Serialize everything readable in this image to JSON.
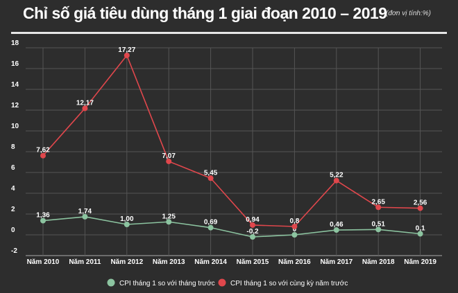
{
  "title": "Chỉ số giá tiêu dùng tháng 1  giai đoạn 2010 – 2019",
  "unit_note": "(đơn vị tính:%)",
  "chart_data": {
    "type": "line",
    "title": "Chỉ số giá tiêu dùng tháng 1  giai đoạn 2010 – 2019",
    "categories": [
      "Năm 2010",
      "Năm 2011",
      "Năm 2012",
      "Năm 2013",
      "Năm 2014",
      "Năm 2015",
      "Năm 2016",
      "Năm 2017",
      "Năm 2018",
      "Năm 2019"
    ],
    "ylim": [
      -2,
      18
    ],
    "yticks": [
      -2,
      0,
      2,
      4,
      6,
      8,
      10,
      12,
      14,
      16,
      18
    ],
    "grid": true,
    "legend": "bottom",
    "series": [
      {
        "name": "CPI tháng 1 so với tháng trước",
        "color": "#8cc4a0",
        "values": [
          1.36,
          1.74,
          1.0,
          1.25,
          0.69,
          -0.2,
          0,
          0.46,
          0.51,
          0.1
        ],
        "labels": [
          "1,36",
          "1,74",
          "1,00",
          "1,25",
          "0,69",
          "-0,2",
          "0",
          "0,46",
          "0,51",
          "0,1"
        ]
      },
      {
        "name": "CPI tháng 1 so với cùng kỳ năm trước",
        "color": "#e0474c",
        "values": [
          7.62,
          12.17,
          17.27,
          7.07,
          5.45,
          0.94,
          0.8,
          5.22,
          2.65,
          2.56
        ],
        "labels": [
          "7,62",
          "12,17",
          "17,27",
          "7,07",
          "5,45",
          "0,94",
          "0,8",
          "5,22",
          "2,65",
          "2,56"
        ]
      }
    ]
  }
}
